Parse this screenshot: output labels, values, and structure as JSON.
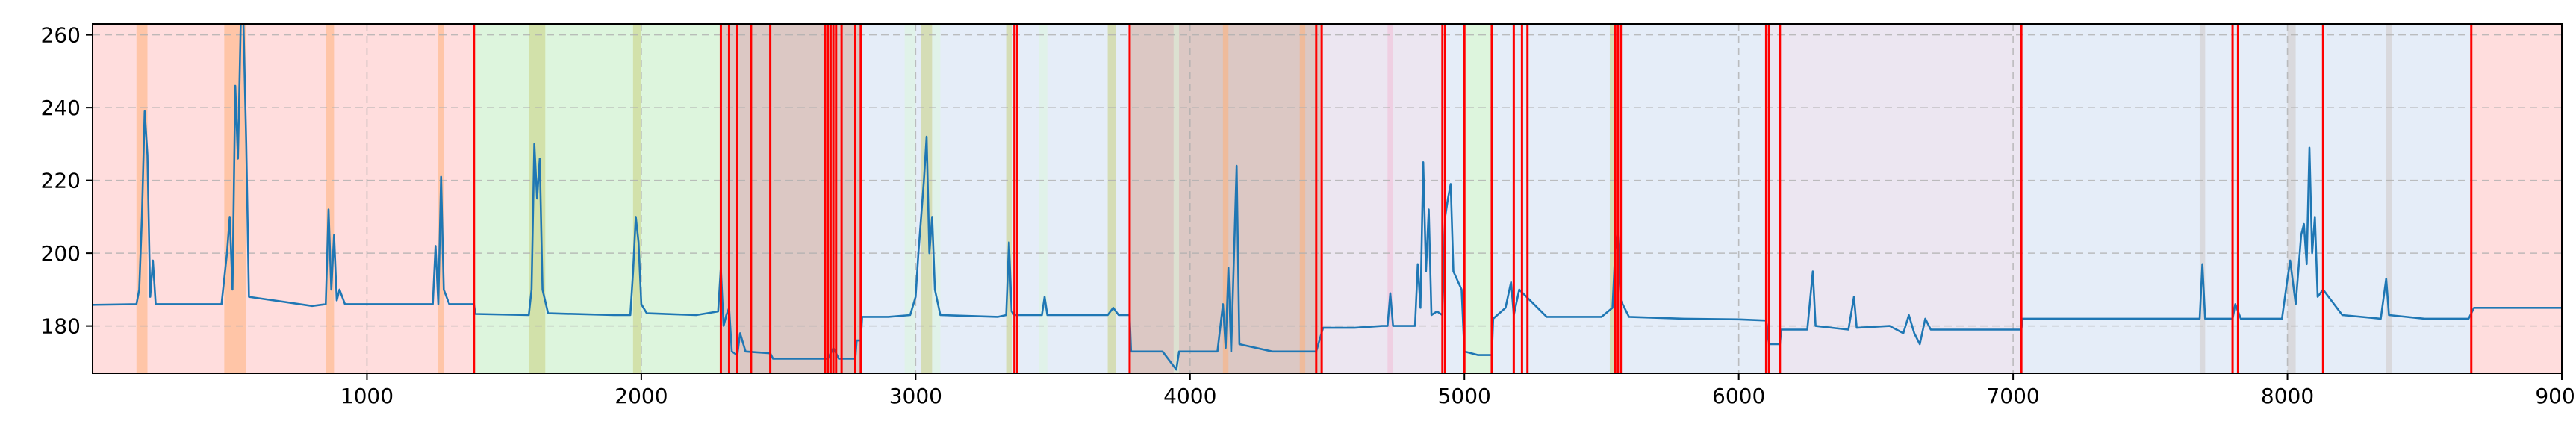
{
  "chart_data": {
    "type": "line",
    "title": "",
    "xlabel": "",
    "ylabel": "",
    "xlim": [
      0,
      9000
    ],
    "ylim": [
      167,
      263
    ],
    "xticks": [
      1000,
      2000,
      3000,
      4000,
      5000,
      6000,
      7000,
      8000,
      9000
    ],
    "xtick_labels": [
      "1000",
      "2000",
      "3000",
      "4000",
      "5000",
      "6000",
      "7000",
      "8000",
      "9000"
    ],
    "yticks": [
      180,
      200,
      220,
      240,
      260
    ],
    "ytick_labels": [
      "180",
      "200",
      "220",
      "240",
      "260"
    ],
    "grid": true,
    "legend": "none",
    "colors": {
      "line": "#1f77b4",
      "boundary": "#ff0000",
      "grid": "#b0b0b0",
      "segment_palette": {
        "red": "#ffdddd",
        "green": "#ddf5dd",
        "blue": "#e5edf8",
        "brown": "#dcc8c4",
        "purple": "#ece6f1"
      },
      "highlight_palette": {
        "orange": "#ffb07a",
        "olive": "#c9cf80",
        "pink": "#f2bcd6",
        "gray": "#cfc8c6"
      }
    },
    "segments": [
      {
        "start": 0,
        "end": 1390,
        "color": "red"
      },
      {
        "start": 1390,
        "end": 2290,
        "color": "green"
      },
      {
        "start": 2290,
        "end": 2470,
        "color": "brown"
      },
      {
        "start": 2470,
        "end": 2800,
        "color": "brown"
      },
      {
        "start": 2800,
        "end": 3780,
        "color": "blue"
      },
      {
        "start": 3780,
        "end": 4480,
        "color": "brown"
      },
      {
        "start": 4480,
        "end": 4920,
        "color": "purple"
      },
      {
        "start": 4920,
        "end": 5000,
        "color": "blue"
      },
      {
        "start": 5000,
        "end": 5100,
        "color": "green"
      },
      {
        "start": 5100,
        "end": 6110,
        "color": "blue"
      },
      {
        "start": 6110,
        "end": 7030,
        "color": "purple"
      },
      {
        "start": 7030,
        "end": 8670,
        "color": "blue"
      },
      {
        "start": 8670,
        "end": 9000,
        "color": "red"
      }
    ],
    "highlights": [
      {
        "start": 160,
        "end": 200,
        "color": "orange"
      },
      {
        "start": 480,
        "end": 560,
        "color": "orange"
      },
      {
        "start": 850,
        "end": 880,
        "color": "orange"
      },
      {
        "start": 1260,
        "end": 1280,
        "color": "orange"
      },
      {
        "start": 1590,
        "end": 1650,
        "color": "olive"
      },
      {
        "start": 1970,
        "end": 2000,
        "color": "olive"
      },
      {
        "start": 2960,
        "end": 3000,
        "color": "green"
      },
      {
        "start": 3020,
        "end": 3060,
        "color": "olive"
      },
      {
        "start": 3060,
        "end": 3090,
        "color": "green"
      },
      {
        "start": 3330,
        "end": 3350,
        "color": "olive"
      },
      {
        "start": 3450,
        "end": 3480,
        "color": "green"
      },
      {
        "start": 3700,
        "end": 3730,
        "color": "olive"
      },
      {
        "start": 3940,
        "end": 3960,
        "color": "green"
      },
      {
        "start": 4120,
        "end": 4140,
        "color": "orange"
      },
      {
        "start": 4400,
        "end": 4420,
        "color": "orange"
      },
      {
        "start": 4720,
        "end": 4740,
        "color": "pink"
      },
      {
        "start": 5530,
        "end": 5550,
        "color": "olive"
      },
      {
        "start": 7680,
        "end": 7700,
        "color": "gray"
      },
      {
        "start": 8000,
        "end": 8030,
        "color": "gray"
      },
      {
        "start": 8360,
        "end": 8380,
        "color": "gray"
      }
    ],
    "boundaries": [
      1390,
      2290,
      2320,
      2350,
      2400,
      2470,
      2670,
      2680,
      2690,
      2700,
      2710,
      2730,
      2780,
      2800,
      3360,
      3370,
      3780,
      4460,
      4480,
      4920,
      4930,
      5000,
      5100,
      5180,
      5210,
      5230,
      5550,
      5560,
      5570,
      6100,
      6110,
      6150,
      7030,
      7800,
      7820,
      8130,
      8670
    ],
    "series": [
      {
        "values": [
          [
            0,
            185.8
          ],
          [
            160,
            186
          ],
          [
            170,
            190
          ],
          [
            180,
            210
          ],
          [
            190,
            239
          ],
          [
            200,
            227
          ],
          [
            210,
            188
          ],
          [
            220,
            198
          ],
          [
            230,
            186
          ],
          [
            400,
            186
          ],
          [
            470,
            186
          ],
          [
            490,
            200
          ],
          [
            500,
            210
          ],
          [
            510,
            190
          ],
          [
            520,
            246
          ],
          [
            530,
            226
          ],
          [
            540,
            263
          ],
          [
            550,
            263
          ],
          [
            560,
            230
          ],
          [
            570,
            188
          ],
          [
            800,
            185.5
          ],
          [
            850,
            186
          ],
          [
            860,
            212
          ],
          [
            870,
            190
          ],
          [
            880,
            205
          ],
          [
            890,
            187
          ],
          [
            900,
            190
          ],
          [
            920,
            186
          ],
          [
            1000,
            186
          ],
          [
            1200,
            186
          ],
          [
            1240,
            186
          ],
          [
            1250,
            202
          ],
          [
            1260,
            186
          ],
          [
            1270,
            221
          ],
          [
            1280,
            190
          ],
          [
            1300,
            186
          ],
          [
            1390,
            186
          ],
          [
            1395,
            183.3
          ],
          [
            1590,
            183
          ],
          [
            1600,
            190
          ],
          [
            1610,
            230
          ],
          [
            1620,
            215
          ],
          [
            1630,
            226
          ],
          [
            1640,
            190
          ],
          [
            1660,
            183.5
          ],
          [
            1900,
            183
          ],
          [
            1960,
            183
          ],
          [
            1970,
            195
          ],
          [
            1980,
            210
          ],
          [
            1990,
            203
          ],
          [
            2000,
            186
          ],
          [
            2020,
            183.5
          ],
          [
            2200,
            183
          ],
          [
            2280,
            184
          ],
          [
            2290,
            196
          ],
          [
            2300,
            180
          ],
          [
            2310,
            183
          ],
          [
            2320,
            185
          ],
          [
            2330,
            173
          ],
          [
            2350,
            172
          ],
          [
            2360,
            178
          ],
          [
            2380,
            173
          ],
          [
            2470,
            172.5
          ],
          [
            2480,
            171
          ],
          [
            2600,
            171
          ],
          [
            2680,
            171
          ],
          [
            2700,
            174
          ],
          [
            2720,
            171
          ],
          [
            2780,
            171
          ],
          [
            2785,
            176
          ],
          [
            2800,
            176
          ],
          [
            2805,
            182.5
          ],
          [
            2900,
            182.5
          ],
          [
            2980,
            183
          ],
          [
            3000,
            188
          ],
          [
            3010,
            200
          ],
          [
            3020,
            210
          ],
          [
            3030,
            220
          ],
          [
            3040,
            232
          ],
          [
            3050,
            200
          ],
          [
            3060,
            210
          ],
          [
            3070,
            190
          ],
          [
            3090,
            183
          ],
          [
            3300,
            182.5
          ],
          [
            3330,
            183
          ],
          [
            3340,
            203
          ],
          [
            3350,
            184
          ],
          [
            3360,
            183
          ],
          [
            3460,
            183
          ],
          [
            3470,
            188
          ],
          [
            3480,
            183
          ],
          [
            3700,
            183
          ],
          [
            3720,
            185
          ],
          [
            3740,
            183
          ],
          [
            3780,
            183
          ],
          [
            3785,
            173
          ],
          [
            3900,
            173
          ],
          [
            3950,
            168
          ],
          [
            3960,
            173
          ],
          [
            4100,
            173
          ],
          [
            4120,
            186
          ],
          [
            4130,
            174
          ],
          [
            4140,
            196
          ],
          [
            4150,
            173
          ],
          [
            4170,
            224
          ],
          [
            4180,
            175
          ],
          [
            4300,
            173
          ],
          [
            4400,
            173
          ],
          [
            4460,
            173
          ],
          [
            4485,
            179.5
          ],
          [
            4600,
            179.5
          ],
          [
            4700,
            180
          ],
          [
            4720,
            180
          ],
          [
            4730,
            189
          ],
          [
            4740,
            180
          ],
          [
            4820,
            180
          ],
          [
            4830,
            197
          ],
          [
            4840,
            185
          ],
          [
            4850,
            225
          ],
          [
            4860,
            195
          ],
          [
            4870,
            212
          ],
          [
            4880,
            183
          ],
          [
            4900,
            184
          ],
          [
            4920,
            183
          ],
          [
            4930,
            210
          ],
          [
            4940,
            215
          ],
          [
            4950,
            219
          ],
          [
            4960,
            195
          ],
          [
            4990,
            190
          ],
          [
            5000,
            173
          ],
          [
            5050,
            172
          ],
          [
            5080,
            172
          ],
          [
            5100,
            172
          ],
          [
            5105,
            182
          ],
          [
            5150,
            185
          ],
          [
            5170,
            192
          ],
          [
            5180,
            183
          ],
          [
            5200,
            190
          ],
          [
            5300,
            182.5
          ],
          [
            5500,
            182.5
          ],
          [
            5540,
            185
          ],
          [
            5550,
            201
          ],
          [
            5560,
            206
          ],
          [
            5570,
            187
          ],
          [
            5600,
            182.5
          ],
          [
            5800,
            182
          ],
          [
            6000,
            181.8
          ],
          [
            6100,
            181.5
          ],
          [
            6110,
            175
          ],
          [
            6150,
            175
          ],
          [
            6155,
            179
          ],
          [
            6250,
            179
          ],
          [
            6270,
            195
          ],
          [
            6280,
            180
          ],
          [
            6400,
            179
          ],
          [
            6420,
            188
          ],
          [
            6430,
            179.5
          ],
          [
            6550,
            180
          ],
          [
            6600,
            178
          ],
          [
            6620,
            183
          ],
          [
            6640,
            178
          ],
          [
            6660,
            175
          ],
          [
            6680,
            182
          ],
          [
            6700,
            179
          ],
          [
            6900,
            179
          ],
          [
            7030,
            179
          ],
          [
            7035,
            182
          ],
          [
            7200,
            182
          ],
          [
            7400,
            182
          ],
          [
            7600,
            182
          ],
          [
            7680,
            182
          ],
          [
            7690,
            197
          ],
          [
            7700,
            182
          ],
          [
            7800,
            182
          ],
          [
            7810,
            186
          ],
          [
            7820,
            184
          ],
          [
            7830,
            182
          ],
          [
            7980,
            182
          ],
          [
            8000,
            193
          ],
          [
            8010,
            198
          ],
          [
            8030,
            186
          ],
          [
            8050,
            205
          ],
          [
            8060,
            208
          ],
          [
            8070,
            197
          ],
          [
            8080,
            229
          ],
          [
            8090,
            200
          ],
          [
            8100,
            210
          ],
          [
            8110,
            188
          ],
          [
            8130,
            190
          ],
          [
            8200,
            183
          ],
          [
            8340,
            182
          ],
          [
            8360,
            193
          ],
          [
            8370,
            183
          ],
          [
            8500,
            182
          ],
          [
            8660,
            182
          ],
          [
            8680,
            185
          ],
          [
            8800,
            185
          ],
          [
            9000,
            185
          ]
        ]
      }
    ]
  }
}
